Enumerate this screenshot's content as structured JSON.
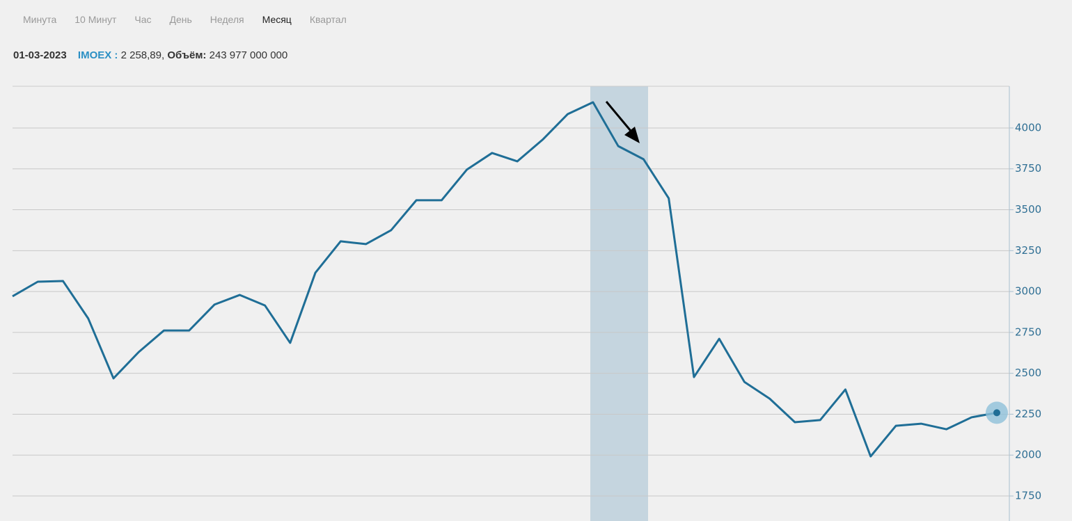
{
  "tabs": [
    "Минута",
    "10 Минут",
    "Час",
    "День",
    "Неделя",
    "Месяц",
    "Квартал"
  ],
  "active_tab": 5,
  "info": {
    "date": "01-03-2023",
    "ticker": "IMOEX :",
    "value": "2 258,89,",
    "volume_label": "Объём:",
    "volume": "243 977 000 000"
  },
  "chart_data": {
    "type": "line",
    "categories": [
      null,
      null,
      null,
      null,
      null,
      null,
      null,
      null,
      null,
      null,
      null,
      null,
      null,
      null,
      null,
      null,
      null,
      null,
      null,
      null,
      null,
      null,
      null,
      null,
      null,
      null,
      null,
      null,
      null,
      null,
      null,
      null,
      null,
      null,
      null,
      null,
      null,
      null,
      null,
      null
    ],
    "series": [
      {
        "name": "IMOEX",
        "color": "#1f6e96",
        "values": [
          2971,
          3060,
          3064,
          2835,
          2469,
          2630,
          2762,
          2762,
          2920,
          2979,
          2915,
          2686,
          3115,
          3307,
          3290,
          3375,
          3558,
          3558,
          3745,
          3847,
          3796,
          3928,
          4085,
          4157,
          3889,
          3809,
          3570,
          2477,
          2711,
          2447,
          2345,
          2201,
          2214,
          2401,
          1992,
          2179,
          2192,
          2158,
          2231,
          2258.89
        ]
      }
    ],
    "ylim": [
      1597,
      4255
    ],
    "yticks": [
      1750,
      2000,
      2250,
      2500,
      2750,
      3000,
      3250,
      3500,
      3750,
      4000
    ],
    "grid": true
  }
}
